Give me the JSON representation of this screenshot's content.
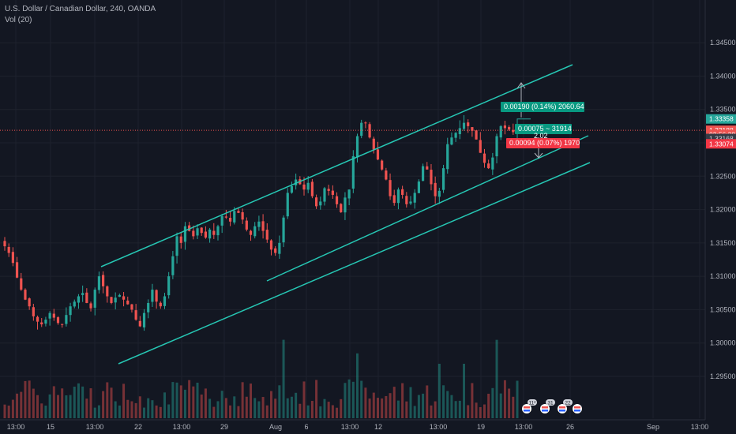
{
  "header": {
    "symbol_title": "U.S. Dollar / Canadian Dollar, 240, OANDA",
    "volume_label": "Vol (20)"
  },
  "price_axis": {
    "ticks": [
      "1.34500",
      "1.34000",
      "1.33500",
      "1.33000",
      "1.32500",
      "1.32000",
      "1.31500",
      "1.31000",
      "1.30500",
      "1.30000",
      "1.29500"
    ],
    "badges": [
      {
        "text": "1.33358",
        "bg": "#26a69a",
        "fg": "#ffffff",
        "price": 1.33358
      },
      {
        "text": "1.33188",
        "bg": "#ef5350",
        "fg": "#ffffff",
        "price": 1.33188
      },
      {
        "text": "02:56:28",
        "bg": "#ef5350",
        "fg": "#ffffff",
        "price": 1.33125
      },
      {
        "text": "1.33168",
        "bg": "#363a45",
        "fg": "#d1d4dc",
        "price": 1.33065
      },
      {
        "text": "1.33074",
        "bg": "#f23645",
        "fg": "#ffffff",
        "price": 1.32985
      }
    ]
  },
  "time_axis": {
    "ticks": [
      "13:00",
      "15",
      "13:00",
      "22",
      "13:00",
      "29",
      "Aug",
      "6",
      "13:00",
      "12",
      "13:00",
      "19",
      "13:00",
      "26",
      "Sep",
      "13:00"
    ]
  },
  "position_tool": {
    "target_label": "0.00190 (0.14%) 2060.64",
    "middle_label": "0.00075 ~ 31914",
    "ratio_label": "2.02",
    "stop_label": "0.00094 (0.07%) 1970"
  },
  "event_markers": [
    "11²",
    "31",
    "22"
  ],
  "colors": {
    "background": "#131722",
    "up": "#26a69a",
    "down": "#ef5350",
    "channel": "#26c6b3",
    "current_price_line": "#ef5350"
  },
  "chart_data": {
    "type": "candlestick",
    "ylim": [
      1.295,
      1.3475
    ],
    "price_series_close": [
      1.3145,
      1.3135,
      1.312,
      1.3098,
      1.308,
      1.3065,
      1.3055,
      1.304,
      1.3032,
      1.3028,
      1.3035,
      1.3045,
      1.3038,
      1.303,
      1.3028,
      1.3042,
      1.3055,
      1.3062,
      1.307,
      1.3075,
      1.306,
      1.3052,
      1.308,
      1.31,
      1.3085,
      1.307,
      1.306,
      1.3068,
      1.3072,
      1.3065,
      1.3058,
      1.305,
      1.3035,
      1.3025,
      1.3045,
      1.306,
      1.308,
      1.3062,
      1.3055,
      1.307,
      1.31,
      1.313,
      1.316,
      1.315,
      1.3175,
      1.3168,
      1.316,
      1.3172,
      1.3165,
      1.3158,
      1.317,
      1.3162,
      1.3175,
      1.319,
      1.3188,
      1.3182,
      1.3198,
      1.3195,
      1.3185,
      1.317,
      1.3162,
      1.3175,
      1.3182,
      1.3168,
      1.3155,
      1.314,
      1.3135,
      1.315,
      1.3188,
      1.3225,
      1.3235,
      1.3245,
      1.3238,
      1.323,
      1.324,
      1.322,
      1.3205,
      1.3212,
      1.3232,
      1.3228,
      1.3222,
      1.3208,
      1.3196,
      1.3218,
      1.323,
      1.328,
      1.331,
      1.333,
      1.333,
      1.3308,
      1.329,
      1.3275,
      1.326,
      1.3245,
      1.322,
      1.321,
      1.323,
      1.3222,
      1.3208,
      1.3212,
      1.3225,
      1.3242,
      1.3265,
      1.326,
      1.3238,
      1.322,
      1.3228,
      1.3262,
      1.3298,
      1.3308,
      1.3315,
      1.3322,
      1.333,
      1.3325,
      1.3318,
      1.3305,
      1.3285,
      1.327,
      1.3262,
      1.3278,
      1.331,
      1.3325,
      1.3322,
      1.332,
      1.3316,
      1.3319
    ],
    "volume_ylim": [
      0,
      700
    ],
    "channel_lines": [
      {
        "name": "upper",
        "from": [
          "2019-07-17",
          1.314
        ],
        "to": [
          "2019-08-26",
          1.3398
        ]
      },
      {
        "name": "middle",
        "from": [
          "2019-07-29",
          1.3125
        ],
        "to": [
          "2019-08-26",
          1.3307
        ]
      },
      {
        "name": "lower",
        "from": [
          "2019-07-19",
          1.3017
        ],
        "to": [
          "2019-08-26",
          1.3275
        ]
      }
    ],
    "position": {
      "entry": 1.33168,
      "target": 1.33358,
      "stop": 1.33074
    }
  }
}
